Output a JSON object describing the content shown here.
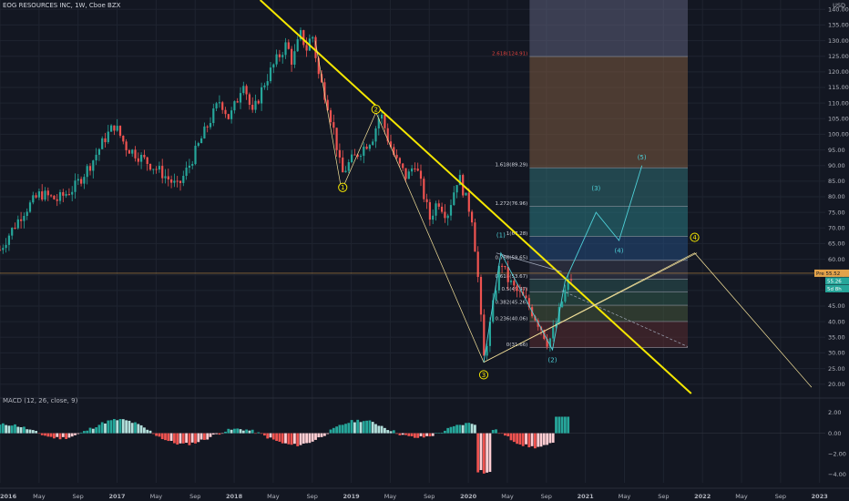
{
  "header": {
    "title": "EOG RESOURCES INC, 1W, Cboe BZX",
    "currency": "USD",
    "macd_label": "MACD (12, 26, close, 9)"
  },
  "colors": {
    "background": "#131722",
    "up": "#26a69a",
    "down": "#ef5350",
    "trendline": "#f5e700",
    "fib_line": "#f5e29a",
    "wave": "#4ed0d8",
    "grid": "#1f2430"
  },
  "chart_data": {
    "type": "candlestick",
    "title": "EOG RESOURCES INC, 1W, Cboe BZX",
    "y_axis": {
      "ticks": [
        "140.00",
        "135.00",
        "130.00",
        "125.00",
        "120.00",
        "115.00",
        "110.00",
        "105.00",
        "100.00",
        "95.00",
        "90.00",
        "85.00",
        "80.00",
        "75.00",
        "70.00",
        "65.00",
        "60.00",
        "55.00",
        "50.00",
        "45.00",
        "40.00",
        "35.00",
        "30.00",
        "25.00",
        "20.00"
      ],
      "range": [
        17,
        143
      ]
    },
    "x_axis": {
      "ticks": [
        "2016",
        "May",
        "Sep",
        "2017",
        "May",
        "Sep",
        "2018",
        "May",
        "Sep",
        "2019",
        "May",
        "Sep",
        "2020",
        "May",
        "Sep",
        "2021",
        "May",
        "Sep",
        "2022",
        "May",
        "Sep",
        "2023"
      ],
      "range": [
        2016.0,
        2023.2
      ]
    },
    "last_price": {
      "label": "Pre",
      "value": "55.52"
    },
    "price_tags": [
      "55.26",
      "5d 8h"
    ],
    "price_path": [
      [
        2016.0,
        63
      ],
      [
        2016.08,
        68
      ],
      [
        2016.2,
        75
      ],
      [
        2016.35,
        81
      ],
      [
        2016.5,
        79
      ],
      [
        2016.65,
        83
      ],
      [
        2016.8,
        91
      ],
      [
        2016.92,
        99
      ],
      [
        2017.0,
        103
      ],
      [
        2017.1,
        96
      ],
      [
        2017.25,
        92
      ],
      [
        2017.4,
        88
      ],
      [
        2017.55,
        83
      ],
      [
        2017.65,
        90
      ],
      [
        2017.8,
        102
      ],
      [
        2017.92,
        111
      ],
      [
        2018.0,
        105
      ],
      [
        2018.08,
        112
      ],
      [
        2018.12,
        118
      ],
      [
        2018.2,
        106
      ],
      [
        2018.3,
        116
      ],
      [
        2018.4,
        123
      ],
      [
        2018.5,
        129
      ],
      [
        2018.55,
        123
      ],
      [
        2018.62,
        132
      ],
      [
        2018.68,
        127
      ],
      [
        2018.72,
        133
      ],
      [
        2018.78,
        119
      ],
      [
        2018.85,
        111
      ],
      [
        2018.92,
        100
      ],
      [
        2018.98,
        87
      ],
      [
        2019.05,
        91
      ],
      [
        2019.15,
        95
      ],
      [
        2019.25,
        99
      ],
      [
        2019.32,
        107
      ],
      [
        2019.38,
        99
      ],
      [
        2019.45,
        92
      ],
      [
        2019.55,
        86
      ],
      [
        2019.62,
        91
      ],
      [
        2019.7,
        80
      ],
      [
        2019.75,
        73
      ],
      [
        2019.82,
        79
      ],
      [
        2019.9,
        74
      ],
      [
        2020.0,
        87
      ],
      [
        2020.05,
        81
      ],
      [
        2020.12,
        73
      ],
      [
        2020.17,
        54
      ],
      [
        2020.22,
        28
      ],
      [
        2020.28,
        40
      ],
      [
        2020.33,
        52
      ],
      [
        2020.37,
        60
      ],
      [
        2020.42,
        54
      ],
      [
        2020.5,
        50
      ],
      [
        2020.58,
        47
      ],
      [
        2020.66,
        42
      ],
      [
        2020.72,
        38
      ],
      [
        2020.78,
        33
      ],
      [
        2020.84,
        38
      ],
      [
        2020.9,
        46
      ],
      [
        2020.95,
        52
      ],
      [
        2021.0,
        55
      ]
    ],
    "fibonacci": [
      {
        "label": "2.618(124.91)",
        "value": 124.91
      },
      {
        "label": "1.618(89.29)",
        "value": 89.29
      },
      {
        "label": "1.272(76.96)",
        "value": 76.96
      },
      {
        "label": "1(67.28)",
        "value": 67.28
      },
      {
        "label": "0.786(59.65)",
        "value": 59.65
      },
      {
        "label": "0.618(53.67)",
        "value": 53.67
      },
      {
        "label": "0.5(49.47)",
        "value": 49.47
      },
      {
        "label": "0.382(45.26)",
        "value": 45.26
      },
      {
        "label": "0.236(40.06)",
        "value": 40.06
      },
      {
        "label": "0(31.66)",
        "value": 31.66
      }
    ],
    "wave_labels_major": [
      {
        "label": "1",
        "x": 2018.99,
        "y": 83
      },
      {
        "label": "2",
        "x": 2019.28,
        "y": 108
      },
      {
        "label": "3",
        "x": 2020.22,
        "y": 23
      },
      {
        "label": "4",
        "x": 2022.06,
        "y": 67
      }
    ],
    "wave_labels_minor": [
      {
        "label": "(1)",
        "x": 2020.37,
        "y": 67
      },
      {
        "label": "(2)",
        "x": 2020.82,
        "y": 27
      },
      {
        "label": "(3)",
        "x": 2021.2,
        "y": 82
      },
      {
        "label": "(4)",
        "x": 2021.4,
        "y": 62
      },
      {
        "label": "(5)",
        "x": 2021.6,
        "y": 92
      }
    ],
    "macd": {
      "ticks": [
        "2.00",
        "0.00",
        "−2.00",
        "−4.00"
      ],
      "range": [
        -4.8,
        2.7
      ]
    }
  }
}
